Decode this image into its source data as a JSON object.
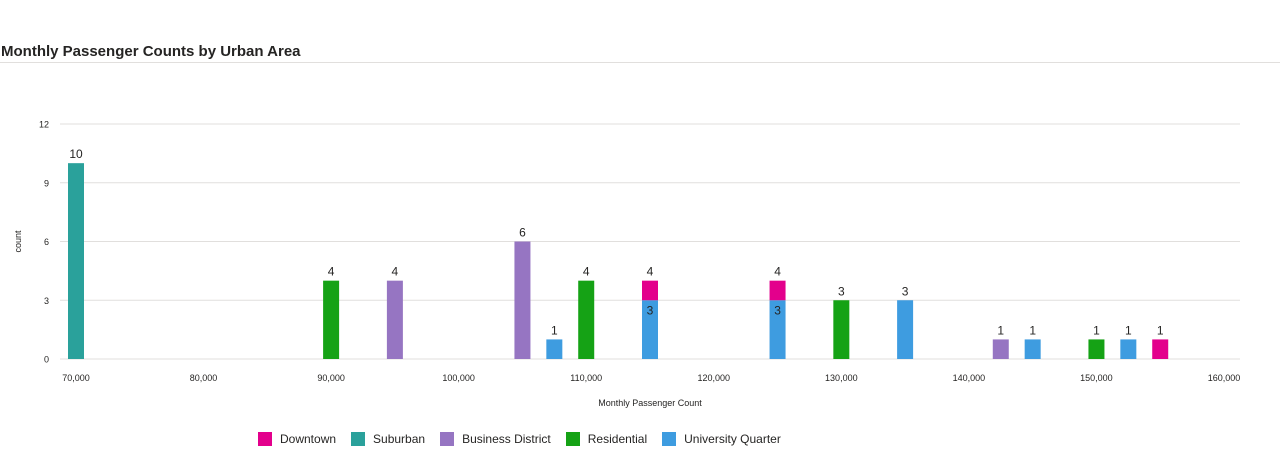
{
  "title": "Monthly Passenger Counts by Urban Area",
  "colors": {
    "Downtown": "#e3008c",
    "Suburban": "#2aa19b",
    "Business District": "#9675c2",
    "Residential": "#15a215",
    "University Quarter": "#3e9ce0",
    "grid": "#e1dfdd",
    "axis_text": "#252423"
  },
  "chart_data": {
    "type": "bar",
    "title": "Monthly Passenger Counts by Urban Area",
    "xlabel": "Monthly Passenger Count",
    "ylabel": "count",
    "xlim": [
      70000,
      160000
    ],
    "ylim": [
      0,
      12
    ],
    "x_ticks": [
      70000,
      80000,
      90000,
      100000,
      110000,
      120000,
      130000,
      140000,
      150000,
      160000
    ],
    "x_tick_labels": [
      "70,000",
      "80,000",
      "90,000",
      "100,000",
      "110,000",
      "120,000",
      "130,000",
      "140,000",
      "150,000",
      "160,000"
    ],
    "y_ticks": [
      0,
      3,
      6,
      9,
      12
    ],
    "y_tick_labels": [
      "0",
      "3",
      "6",
      "9",
      "12"
    ],
    "grid": true,
    "legend_position": "bottom-left",
    "series_names": [
      "Downtown",
      "Suburban",
      "Business District",
      "Residential",
      "University Quarter"
    ],
    "bars": [
      {
        "x": 70000,
        "stack": [
          {
            "series": "Suburban",
            "value": 10
          }
        ],
        "total_label": "10"
      },
      {
        "x": 90000,
        "stack": [
          {
            "series": "Residential",
            "value": 4
          }
        ],
        "total_label": "4"
      },
      {
        "x": 95000,
        "stack": [
          {
            "series": "Business District",
            "value": 4
          }
        ],
        "total_label": "4"
      },
      {
        "x": 105000,
        "stack": [
          {
            "series": "Business District",
            "value": 6
          }
        ],
        "total_label": "6"
      },
      {
        "x": 107500,
        "stack": [
          {
            "series": "University Quarter",
            "value": 1
          }
        ],
        "total_label": "1"
      },
      {
        "x": 110000,
        "stack": [
          {
            "series": "Residential",
            "value": 4
          }
        ],
        "total_label": "4"
      },
      {
        "x": 115000,
        "stack": [
          {
            "series": "University Quarter",
            "value": 3,
            "label": "3"
          },
          {
            "series": "Downtown",
            "value": 1
          }
        ],
        "total_label": "4"
      },
      {
        "x": 125000,
        "stack": [
          {
            "series": "University Quarter",
            "value": 3,
            "label": "3"
          },
          {
            "series": "Downtown",
            "value": 1
          }
        ],
        "total_label": "4"
      },
      {
        "x": 130000,
        "stack": [
          {
            "series": "Residential",
            "value": 3
          }
        ],
        "total_label": "3"
      },
      {
        "x": 135000,
        "stack": [
          {
            "series": "University Quarter",
            "value": 3
          }
        ],
        "total_label": "3"
      },
      {
        "x": 142500,
        "stack": [
          {
            "series": "Business District",
            "value": 1
          }
        ],
        "total_label": "1"
      },
      {
        "x": 145000,
        "stack": [
          {
            "series": "University Quarter",
            "value": 1
          }
        ],
        "total_label": "1"
      },
      {
        "x": 150000,
        "stack": [
          {
            "series": "Residential",
            "value": 1
          }
        ],
        "total_label": "1"
      },
      {
        "x": 152500,
        "stack": [
          {
            "series": "University Quarter",
            "value": 1
          }
        ],
        "total_label": "1"
      },
      {
        "x": 155000,
        "stack": [
          {
            "series": "Downtown",
            "value": 1
          }
        ],
        "total_label": "1"
      }
    ]
  },
  "legend": [
    {
      "label": "Downtown",
      "color": "#e3008c"
    },
    {
      "label": "Suburban",
      "color": "#2aa19b"
    },
    {
      "label": "Business District",
      "color": "#9675c2"
    },
    {
      "label": "Residential",
      "color": "#15a215"
    },
    {
      "label": "University Quarter",
      "color": "#3e9ce0"
    }
  ]
}
